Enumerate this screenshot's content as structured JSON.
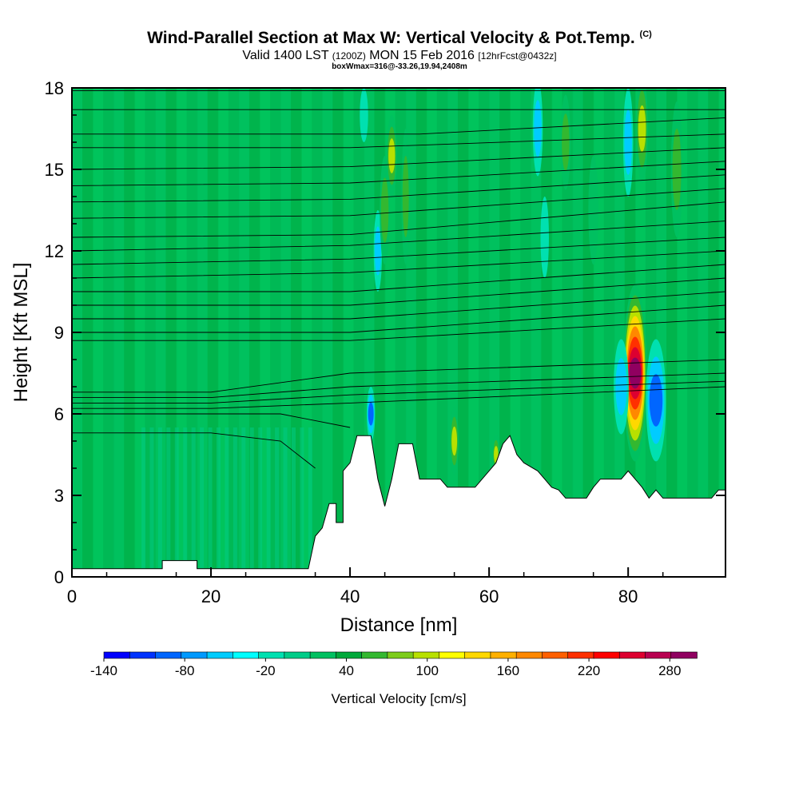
{
  "header": {
    "title": "Wind-Parallel Section at Max W: Vertical Velocity & Pot.Temp.",
    "copyright": "(C)",
    "valid_prefix": "Valid 1400 LST",
    "valid_utc": "(1200Z)",
    "valid_date": "MON 15 Feb 2016",
    "forecast": "[12hrFcst@0432z]",
    "box_info": "boxWmax=316@-33.26,19.94,2408m"
  },
  "chart_data": {
    "type": "heatmap",
    "xlabel": "Distance [nm]",
    "ylabel": "Height [Kft MSL]",
    "xlim": [
      0,
      94
    ],
    "ylim": [
      0,
      18
    ],
    "x_ticks": [
      0,
      20,
      40,
      60,
      80
    ],
    "y_ticks": [
      0,
      3,
      6,
      9,
      12,
      15,
      18
    ],
    "colorbar": {
      "title": "Vertical Velocity [cm/s]",
      "range": [
        -140,
        300
      ],
      "step": 20,
      "tick_values": [
        -140,
        -80,
        -20,
        40,
        100,
        160,
        220,
        280
      ],
      "colors": [
        "#0000ff",
        "#0033ff",
        "#0066ff",
        "#0099ff",
        "#00ccff",
        "#00ffff",
        "#00e0b0",
        "#00cc88",
        "#00c060",
        "#00a83a",
        "#33b830",
        "#7ccc1a",
        "#b8e000",
        "#ffff00",
        "#ffd800",
        "#ffb000",
        "#ff8800",
        "#ff6000",
        "#ff3000",
        "#ff0000",
        "#dd0030",
        "#b80050",
        "#900060"
      ]
    },
    "terrain_profile": [
      [
        0,
        0.3
      ],
      [
        13,
        0.3
      ],
      [
        13,
        0.6
      ],
      [
        18,
        0.6
      ],
      [
        18,
        0.3
      ],
      [
        27,
        0.3
      ],
      [
        34,
        0.3
      ],
      [
        35,
        1.5
      ],
      [
        36,
        1.8
      ],
      [
        37,
        2.7
      ],
      [
        38,
        2.7
      ],
      [
        38,
        2.0
      ],
      [
        39,
        2.0
      ],
      [
        39,
        3.9
      ],
      [
        40,
        4.2
      ],
      [
        41,
        5.2
      ],
      [
        43,
        5.2
      ],
      [
        44,
        3.6
      ],
      [
        45,
        2.6
      ],
      [
        46,
        3.6
      ],
      [
        47,
        4.9
      ],
      [
        49,
        4.9
      ],
      [
        50,
        3.6
      ],
      [
        53,
        3.6
      ],
      [
        54,
        3.3
      ],
      [
        58,
        3.3
      ],
      [
        59,
        3.6
      ],
      [
        60,
        3.9
      ],
      [
        61,
        4.2
      ],
      [
        62,
        4.9
      ],
      [
        63,
        5.2
      ],
      [
        64,
        4.5
      ],
      [
        65,
        4.2
      ],
      [
        67,
        3.9
      ],
      [
        68,
        3.6
      ],
      [
        69,
        3.3
      ],
      [
        70,
        3.2
      ],
      [
        71,
        2.9
      ],
      [
        74,
        2.9
      ],
      [
        75,
        3.3
      ],
      [
        76,
        3.6
      ],
      [
        79,
        3.6
      ],
      [
        80,
        3.9
      ],
      [
        81,
        3.6
      ],
      [
        82,
        3.3
      ],
      [
        83,
        2.9
      ],
      [
        84,
        3.2
      ],
      [
        85,
        2.9
      ],
      [
        92,
        2.9
      ],
      [
        93,
        3.2
      ],
      [
        94,
        3.2
      ]
    ],
    "pot_temp_contours": [
      [
        [
          0,
          17.9
        ],
        [
          94,
          17.9
        ]
      ],
      [
        [
          0,
          17.2
        ],
        [
          94,
          17.2
        ]
      ],
      [
        [
          0,
          16.3
        ],
        [
          50,
          16.3
        ],
        [
          94,
          16.9
        ]
      ],
      [
        [
          0,
          15.8
        ],
        [
          40,
          15.8
        ],
        [
          94,
          16.3
        ]
      ],
      [
        [
          0,
          15.0
        ],
        [
          40,
          15.1
        ],
        [
          94,
          15.8
        ]
      ],
      [
        [
          0,
          14.4
        ],
        [
          40,
          14.5
        ],
        [
          94,
          15.3
        ]
      ],
      [
        [
          0,
          13.8
        ],
        [
          40,
          13.9
        ],
        [
          94,
          14.8
        ]
      ],
      [
        [
          0,
          13.2
        ],
        [
          40,
          13.3
        ],
        [
          94,
          14.3
        ]
      ],
      [
        [
          0,
          12.5
        ],
        [
          40,
          12.6
        ],
        [
          94,
          13.8
        ]
      ],
      [
        [
          0,
          12.0
        ],
        [
          40,
          12.2
        ],
        [
          94,
          13.1
        ]
      ],
      [
        [
          0,
          11.5
        ],
        [
          40,
          11.7
        ],
        [
          94,
          12.5
        ]
      ],
      [
        [
          0,
          11.0
        ],
        [
          40,
          11.2
        ],
        [
          94,
          12.0
        ]
      ],
      [
        [
          0,
          10.5
        ],
        [
          40,
          10.5
        ],
        [
          94,
          11.5
        ]
      ],
      [
        [
          0,
          10.0
        ],
        [
          40,
          10.0
        ],
        [
          94,
          11.0
        ]
      ],
      [
        [
          0,
          9.5
        ],
        [
          40,
          9.5
        ],
        [
          94,
          10.5
        ]
      ],
      [
        [
          0,
          9.0
        ],
        [
          40,
          9.0
        ],
        [
          94,
          10.0
        ]
      ],
      [
        [
          0,
          8.7
        ],
        [
          40,
          8.7
        ],
        [
          94,
          9.5
        ]
      ],
      [
        [
          0,
          6.8
        ],
        [
          20,
          6.8
        ],
        [
          40,
          7.5
        ],
        [
          94,
          8.0
        ]
      ],
      [
        [
          0,
          6.6
        ],
        [
          20,
          6.6
        ],
        [
          40,
          7.0
        ],
        [
          94,
          7.5
        ]
      ],
      [
        [
          0,
          6.4
        ],
        [
          20,
          6.4
        ],
        [
          40,
          6.7
        ],
        [
          94,
          7.2
        ]
      ],
      [
        [
          0,
          6.2
        ],
        [
          20,
          6.2
        ],
        [
          40,
          6.4
        ],
        [
          94,
          7.0
        ]
      ],
      [
        [
          0,
          6.0
        ],
        [
          20,
          6.0
        ],
        [
          30,
          6.0
        ],
        [
          40,
          5.5
        ]
      ],
      [
        [
          0,
          5.3
        ],
        [
          20,
          5.3
        ],
        [
          30,
          5.0
        ],
        [
          35,
          4.0
        ]
      ]
    ],
    "w_features": [
      {
        "x": 81,
        "y": 7.5,
        "w": 1.4,
        "h": 6.5,
        "value": 300
      },
      {
        "x": 84,
        "y": 6.5,
        "w": 1.2,
        "h": 4.5,
        "value": -120
      },
      {
        "x": 79,
        "y": 7.0,
        "w": 0.9,
        "h": 3.5,
        "value": -60
      },
      {
        "x": 43,
        "y": 6.0,
        "w": 0.5,
        "h": 2.0,
        "value": -100
      },
      {
        "x": 44,
        "y": 12.0,
        "w": 0.5,
        "h": 3.0,
        "value": -60
      },
      {
        "x": 45,
        "y": 13.5,
        "w": 0.6,
        "h": 4.0,
        "value": 80
      },
      {
        "x": 46,
        "y": 15.5,
        "w": 0.6,
        "h": 3.0,
        "value": 100
      },
      {
        "x": 48,
        "y": 14.0,
        "w": 0.5,
        "h": 5.0,
        "value": 60
      },
      {
        "x": 42,
        "y": 17.0,
        "w": 0.5,
        "h": 2.0,
        "value": -40
      },
      {
        "x": 55,
        "y": 5.0,
        "w": 0.5,
        "h": 2.5,
        "value": 100
      },
      {
        "x": 61,
        "y": 4.5,
        "w": 0.4,
        "h": 1.5,
        "value": 100
      },
      {
        "x": 67,
        "y": 16.5,
        "w": 0.6,
        "h": 3.5,
        "value": -60
      },
      {
        "x": 68,
        "y": 12.5,
        "w": 0.5,
        "h": 3.0,
        "value": -40
      },
      {
        "x": 71,
        "y": 16.0,
        "w": 0.6,
        "h": 3.5,
        "value": 80
      },
      {
        "x": 80,
        "y": 16.0,
        "w": 0.6,
        "h": 4.0,
        "value": -60
      },
      {
        "x": 82,
        "y": 16.5,
        "w": 0.7,
        "h": 4.0,
        "value": 120
      },
      {
        "x": 87,
        "y": 15.0,
        "w": 0.7,
        "h": 5.0,
        "value": 60
      },
      {
        "x": 75,
        "y": 13.5,
        "w": 0.6,
        "h": 4.0,
        "value": 40
      }
    ]
  }
}
